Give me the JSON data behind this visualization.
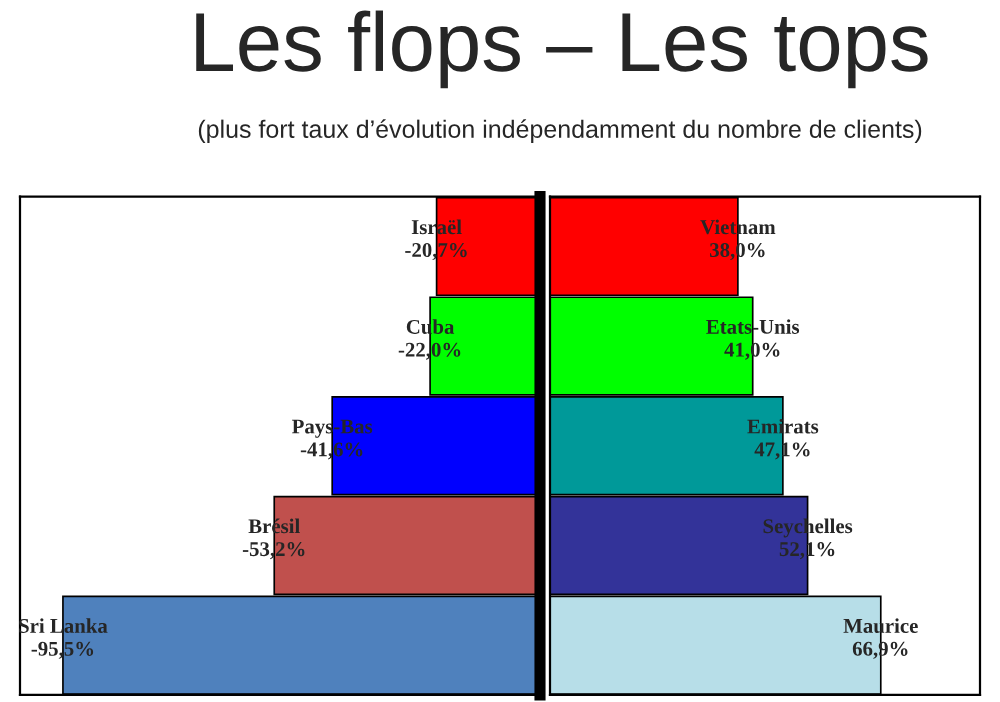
{
  "chart_data": [
    {
      "type": "bar",
      "orientation": "horizontal",
      "title": "Les flops – Les tops",
      "subtitle": "(plus fort taux d’évolution indépendamment du nombre de clients)",
      "categories": [
        "Israël",
        "Cuba",
        "Pays-Bas",
        "Brésil",
        "Sri Lanka"
      ],
      "values": [
        -20.7,
        -22.0,
        -41.6,
        -53.2,
        -95.5
      ],
      "colors": [
        "#ff0000",
        "#00ff00",
        "#0000ff",
        "#c0504d",
        "#4f81bd"
      ],
      "value_labels": [
        "-20,7%",
        "-22,0%",
        "-41,6%",
        "-53,2%",
        "-95,5%"
      ]
    },
    {
      "type": "bar",
      "orientation": "horizontal",
      "categories": [
        "Vietnam",
        "Etats-Unis",
        "Emirats",
        "Seychelles",
        "Maurice"
      ],
      "values": [
        38.0,
        41.0,
        47.1,
        52.1,
        66.9
      ],
      "colors": [
        "#ff0000",
        "#00ff00",
        "#009999",
        "#333399",
        "#b7dee8"
      ],
      "value_labels": [
        "38,0%",
        "41,0%",
        "47,1%",
        "52,1%",
        "66,9%"
      ]
    }
  ]
}
